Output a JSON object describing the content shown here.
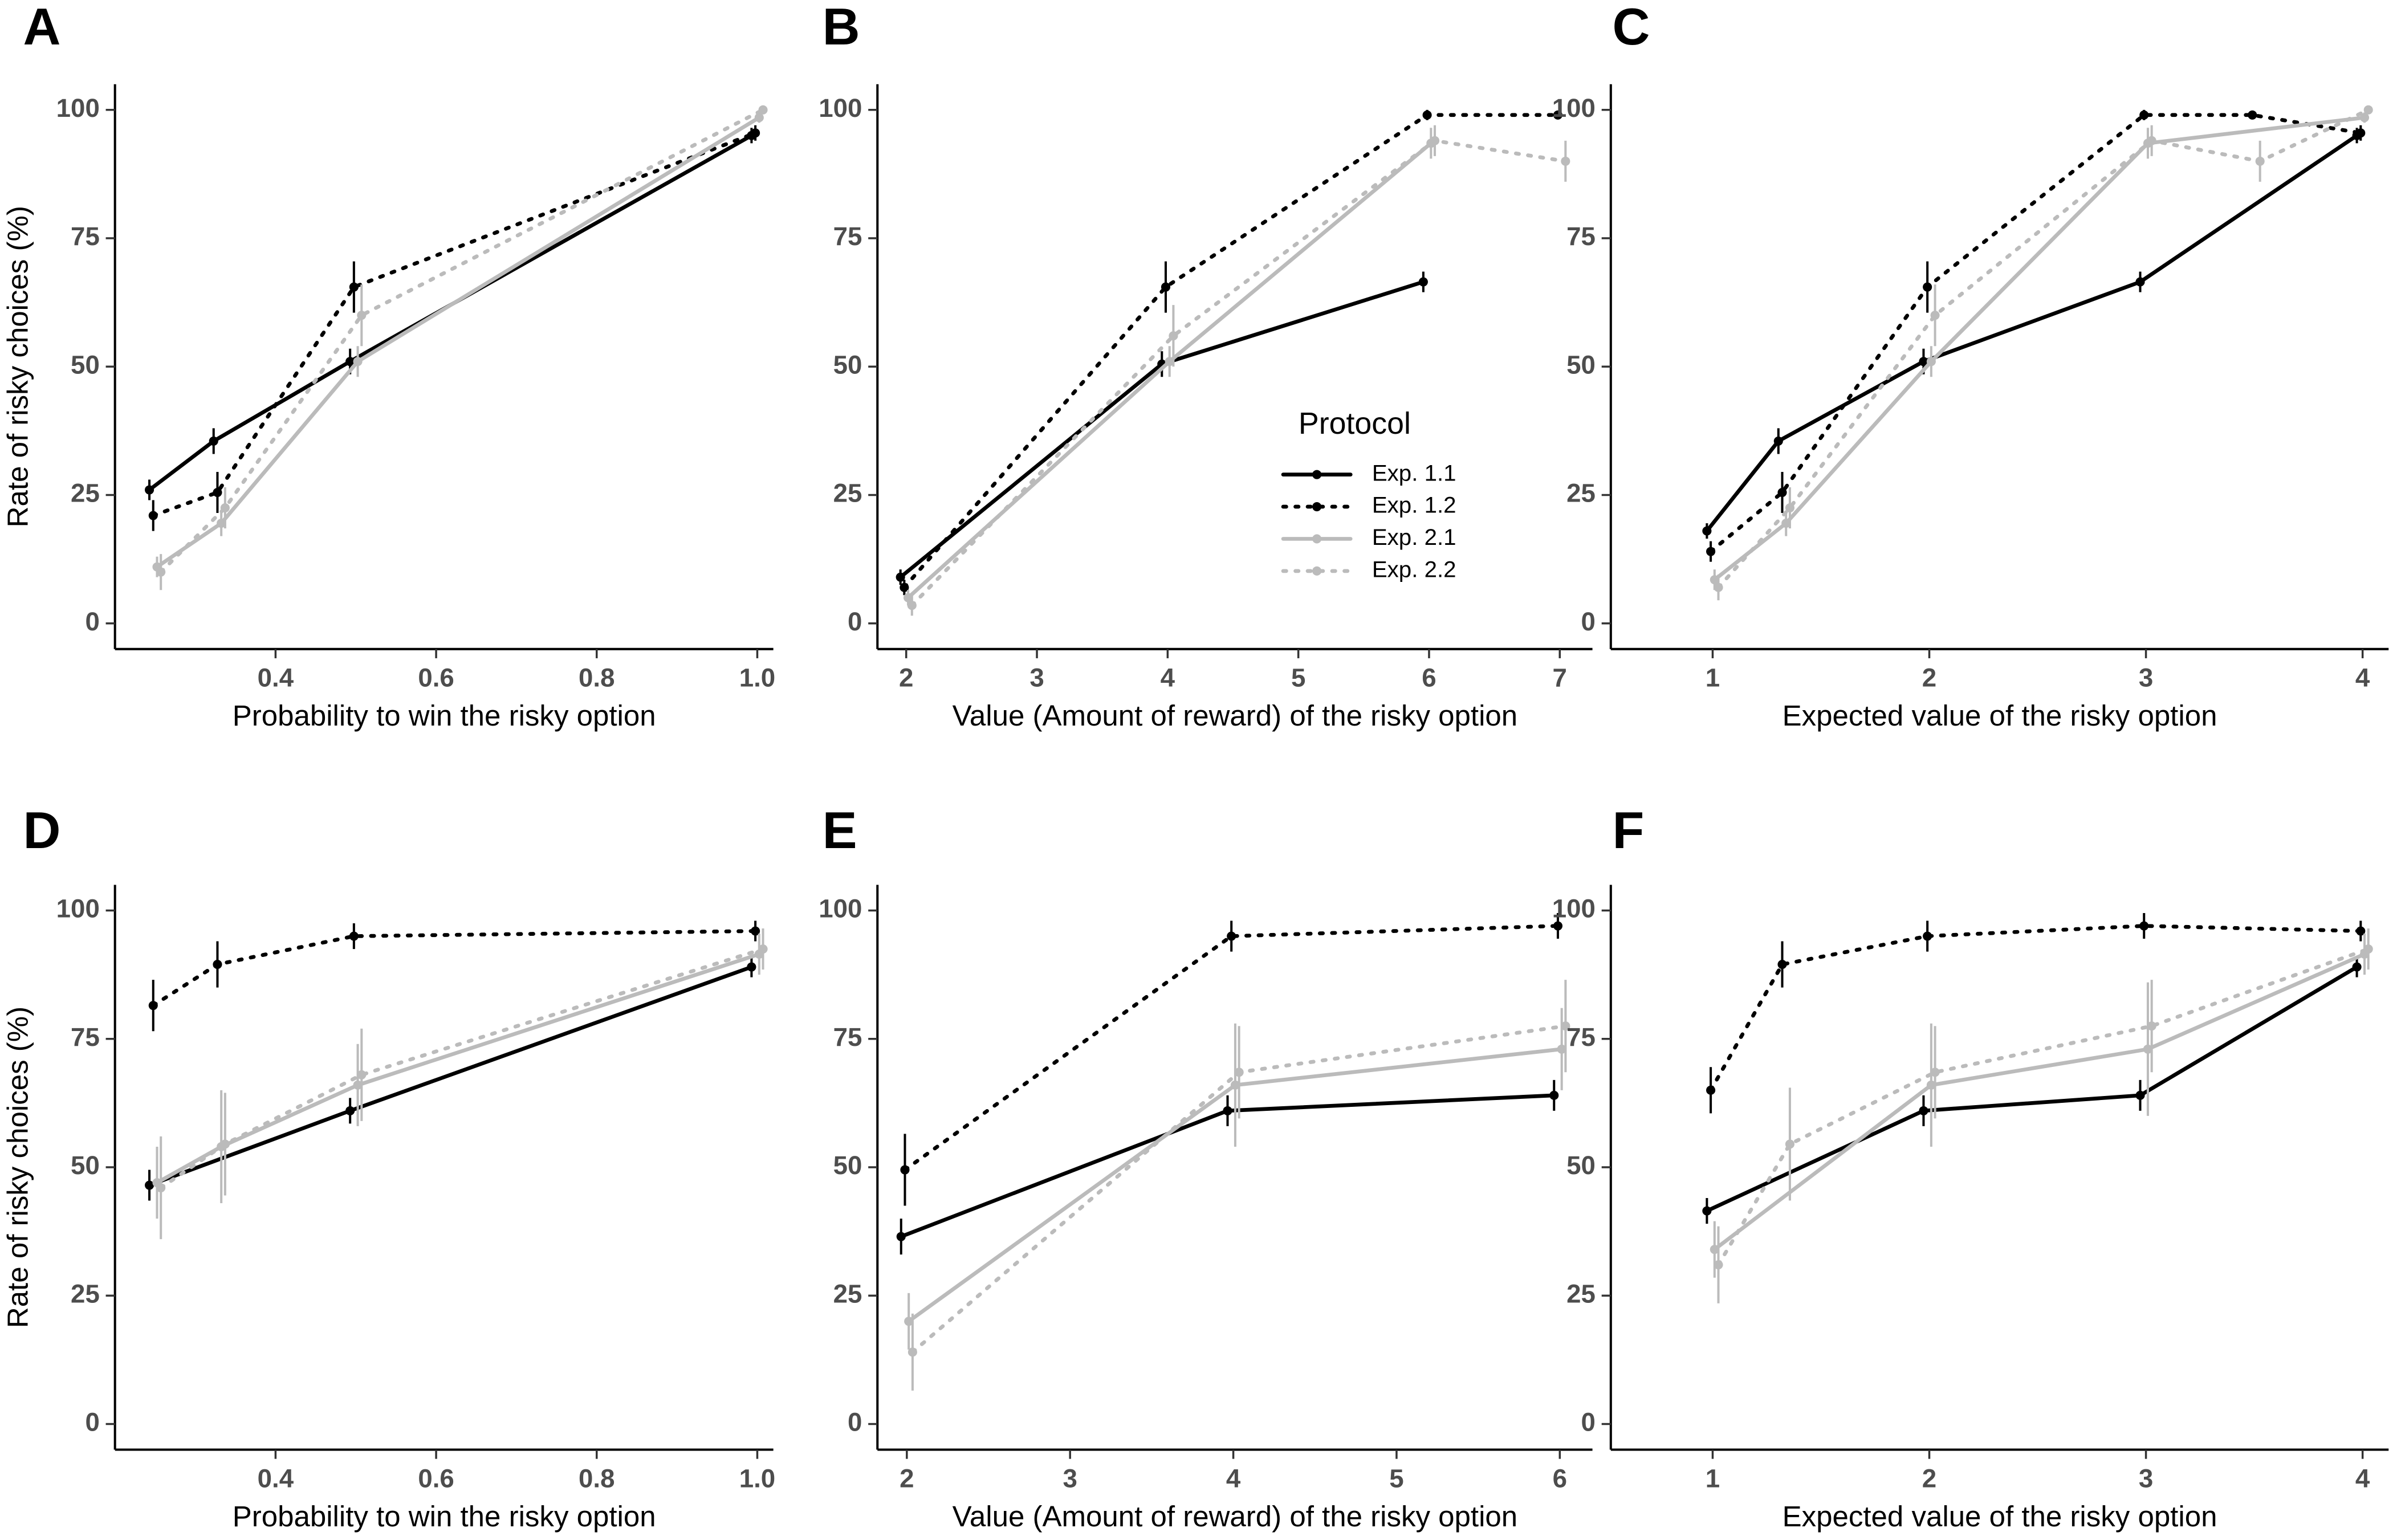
{
  "chart_data": [
    {
      "type": "line",
      "label": "A",
      "x_label": "Probability to win the risky option",
      "y_label": "Rate of risky choices (%)",
      "xlim": [
        0.2,
        1.02
      ],
      "xticks": [
        0.4,
        0.6,
        0.8,
        {
          "value": 1,
          "label": "1.0"
        }
      ],
      "ylim": [
        -5,
        105
      ],
      "yticks": [
        0,
        25,
        50,
        75,
        100
      ],
      "series": [
        {
          "name": "Exp. 1.1",
          "color": "#000000",
          "linestyle": "solid",
          "x": [
            0.25,
            0.33,
            0.5,
            1
          ],
          "values": [
            26,
            35.5,
            51,
            95
          ],
          "errors": [
            2,
            2.5,
            2.5,
            1.5
          ]
        },
        {
          "name": "Exp. 1.2",
          "color": "#000000",
          "linestyle": "dotted",
          "x": [
            0.25,
            0.33,
            0.5,
            1
          ],
          "values": [
            21,
            25.5,
            65.5,
            95.5
          ],
          "errors": [
            3,
            4,
            5,
            1.5
          ]
        },
        {
          "name": "Exp. 2.1",
          "color": "#bbbbbb",
          "linestyle": "solid",
          "x": [
            0.25,
            0.33,
            0.5,
            1
          ],
          "values": [
            11,
            19.5,
            51,
            98.5
          ],
          "errors": [
            2,
            2.5,
            3,
            1
          ]
        },
        {
          "name": "Exp. 2.2",
          "color": "#bbbbbb",
          "linestyle": "dotted",
          "x": [
            0.25,
            0.33,
            0.5,
            1
          ],
          "values": [
            10,
            22.5,
            60,
            100
          ],
          "errors": [
            3.5,
            4,
            6,
            0.5
          ]
        }
      ]
    },
    {
      "type": "line",
      "label": "B",
      "x_label": "Value (Amount of reward) of the risky option",
      "xlim": [
        1.78,
        7.25
      ],
      "xticks": [
        2,
        3,
        4,
        5,
        6,
        7
      ],
      "ylim": [
        -5,
        105
      ],
      "yticks": [
        0,
        25,
        50,
        75,
        100
      ],
      "legend_title": "Protocol",
      "series": [
        {
          "name": "Exp. 1.1",
          "color": "#000000",
          "linestyle": "solid",
          "x": [
            2,
            4,
            6
          ],
          "values": [
            9,
            50.5,
            66.5
          ],
          "errors": [
            1.5,
            2.5,
            2
          ]
        },
        {
          "name": "Exp. 1.2",
          "color": "#000000",
          "linestyle": "dotted",
          "x": [
            2,
            4,
            6,
            7
          ],
          "values": [
            7,
            65.5,
            99,
            99
          ],
          "errors": [
            1.5,
            5,
            1,
            0.5
          ]
        },
        {
          "name": "Exp. 2.1",
          "color": "#bbbbbb",
          "linestyle": "solid",
          "x": [
            2,
            4,
            6
          ],
          "values": [
            5,
            51,
            93.5
          ],
          "errors": [
            1.5,
            3,
            3
          ]
        },
        {
          "name": "Exp. 2.2",
          "color": "#bbbbbb",
          "linestyle": "dotted",
          "x": [
            2,
            4,
            6,
            7
          ],
          "values": [
            3.5,
            56,
            94,
            90
          ],
          "errors": [
            2,
            6,
            3,
            4
          ]
        }
      ]
    },
    {
      "type": "line",
      "label": "C",
      "x_label": "Expected value of the risky option",
      "xlim": [
        0.53,
        4.12
      ],
      "xticks": [
        1,
        2,
        3,
        4
      ],
      "ylim": [
        -5,
        105
      ],
      "yticks": [
        0,
        25,
        50,
        75,
        100
      ],
      "series": [
        {
          "name": "Exp. 1.1",
          "color": "#000000",
          "linestyle": "solid",
          "x": [
            1,
            1.33,
            2,
            3,
            4
          ],
          "values": [
            18,
            35.5,
            51,
            66.5,
            95
          ],
          "errors": [
            1.5,
            2.5,
            2.5,
            2,
            1.5
          ]
        },
        {
          "name": "Exp. 1.2",
          "color": "#000000",
          "linestyle": "dotted",
          "x": [
            1,
            1.33,
            2,
            3,
            3.5,
            4
          ],
          "values": [
            14,
            25.5,
            65.5,
            99,
            99,
            95.5
          ],
          "errors": [
            2,
            4,
            5,
            1,
            0.5,
            1.5
          ]
        },
        {
          "name": "Exp. 2.1",
          "color": "#bbbbbb",
          "linestyle": "solid",
          "x": [
            1,
            1.33,
            2,
            3,
            4
          ],
          "values": [
            8.5,
            19.5,
            51,
            93.5,
            98.5
          ],
          "errors": [
            2,
            2.5,
            3,
            3,
            1
          ]
        },
        {
          "name": "Exp. 2.2",
          "color": "#bbbbbb",
          "linestyle": "dotted",
          "x": [
            1,
            1.33,
            2,
            3,
            3.5,
            4
          ],
          "values": [
            7,
            22.5,
            60,
            94,
            90,
            100
          ],
          "errors": [
            2.5,
            4,
            6,
            3,
            4,
            0.5
          ]
        }
      ]
    },
    {
      "type": "line",
      "label": "D",
      "x_label": "Probability to win the risky option",
      "y_label": "Rate of risky choices (%)",
      "xlim": [
        0.2,
        1.02
      ],
      "xticks": [
        0.4,
        0.6,
        0.8,
        {
          "value": 1,
          "label": "1.0"
        }
      ],
      "ylim": [
        -5,
        105
      ],
      "yticks": [
        0,
        25,
        50,
        75,
        100
      ],
      "series": [
        {
          "name": "Exp. 1.1",
          "color": "#000000",
          "linestyle": "solid",
          "x": [
            0.25,
            0.5,
            1
          ],
          "values": [
            46.5,
            61,
            89
          ],
          "errors": [
            3,
            2.5,
            2
          ]
        },
        {
          "name": "Exp. 1.2",
          "color": "#000000",
          "linestyle": "dotted",
          "x": [
            0.25,
            0.33,
            0.5,
            1
          ],
          "values": [
            81.5,
            89.5,
            95,
            96
          ],
          "errors": [
            5,
            4.5,
            2.5,
            2
          ]
        },
        {
          "name": "Exp. 2.1",
          "color": "#bbbbbb",
          "linestyle": "solid",
          "x": [
            0.25,
            0.33,
            0.5,
            1
          ],
          "values": [
            47,
            54,
            66,
            91.5
          ],
          "errors": [
            7,
            11,
            8,
            4
          ]
        },
        {
          "name": "Exp. 2.2",
          "color": "#bbbbbb",
          "linestyle": "dotted",
          "x": [
            0.25,
            0.33,
            0.5,
            1
          ],
          "values": [
            46,
            54.5,
            68,
            92.5
          ],
          "errors": [
            10,
            10,
            9,
            4
          ]
        }
      ]
    },
    {
      "type": "line",
      "label": "E",
      "x_label": "Value (Amount of reward) of the risky option",
      "xlim": [
        1.82,
        6.2
      ],
      "xticks": [
        2,
        3,
        4,
        5,
        6
      ],
      "ylim": [
        -5,
        105
      ],
      "yticks": [
        0,
        25,
        50,
        75,
        100
      ],
      "series": [
        {
          "name": "Exp. 1.1",
          "color": "#000000",
          "linestyle": "solid",
          "x": [
            2,
            4,
            6
          ],
          "values": [
            36.5,
            61,
            64
          ],
          "errors": [
            3.5,
            3,
            3
          ]
        },
        {
          "name": "Exp. 1.2",
          "color": "#000000",
          "linestyle": "dotted",
          "x": [
            2,
            4,
            6
          ],
          "values": [
            49.5,
            95,
            97
          ],
          "errors": [
            7,
            3,
            2.5
          ]
        },
        {
          "name": "Exp. 2.1",
          "color": "#bbbbbb",
          "linestyle": "solid",
          "x": [
            2,
            4,
            6
          ],
          "values": [
            20,
            66,
            73
          ],
          "errors": [
            5.5,
            12,
            8
          ]
        },
        {
          "name": "Exp. 2.2",
          "color": "#bbbbbb",
          "linestyle": "dotted",
          "x": [
            2,
            4,
            6
          ],
          "values": [
            14,
            68.5,
            77.5
          ],
          "errors": [
            7.5,
            9,
            9
          ]
        }
      ]
    },
    {
      "type": "line",
      "label": "F",
      "x_label": "Expected value of the risky option",
      "xlim": [
        0.53,
        4.12
      ],
      "xticks": [
        1,
        2,
        3,
        4
      ],
      "ylim": [
        -5,
        105
      ],
      "yticks": [
        0,
        25,
        50,
        75,
        100
      ],
      "series": [
        {
          "name": "Exp. 1.1",
          "color": "#000000",
          "linestyle": "solid",
          "x": [
            1,
            2,
            3,
            4
          ],
          "values": [
            41.5,
            61,
            64,
            89
          ],
          "errors": [
            2.5,
            3,
            3,
            2
          ]
        },
        {
          "name": "Exp. 1.2",
          "color": "#000000",
          "linestyle": "dotted",
          "x": [
            1,
            1.33,
            2,
            3,
            4
          ],
          "values": [
            65,
            89.5,
            95,
            97,
            96
          ],
          "errors": [
            4.5,
            4.5,
            3,
            2.5,
            2
          ]
        },
        {
          "name": "Exp. 2.1",
          "color": "#bbbbbb",
          "linestyle": "solid",
          "x": [
            1,
            2,
            3,
            4
          ],
          "values": [
            34,
            66,
            73,
            91.5
          ],
          "errors": [
            5.5,
            12,
            13,
            4
          ]
        },
        {
          "name": "Exp. 2.2",
          "color": "#bbbbbb",
          "linestyle": "dotted",
          "x": [
            1,
            1.33,
            2,
            3,
            4
          ],
          "values": [
            31,
            54.5,
            68.5,
            77.5,
            92.5
          ],
          "errors": [
            7.5,
            11,
            9,
            9,
            4
          ]
        }
      ]
    }
  ]
}
